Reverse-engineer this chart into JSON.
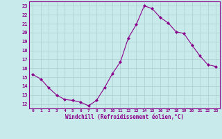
{
  "x": [
    0,
    1,
    2,
    3,
    4,
    5,
    6,
    7,
    8,
    9,
    10,
    11,
    12,
    13,
    14,
    15,
    16,
    17,
    18,
    19,
    20,
    21,
    22,
    23
  ],
  "y": [
    15.3,
    14.8,
    13.8,
    13.0,
    12.5,
    12.4,
    12.2,
    11.8,
    12.4,
    13.8,
    15.4,
    16.7,
    19.4,
    20.9,
    23.0,
    22.7,
    21.7,
    21.1,
    20.1,
    19.9,
    18.6,
    17.4,
    16.4,
    16.2
  ],
  "line_color": "#8B008B",
  "marker": "D",
  "marker_size": 2.0,
  "bg_color": "#c8eaea",
  "grid_color": "#aad0d0",
  "xlabel": "Windchill (Refroidissement éolien,°C)",
  "xlabel_color": "#8B008B",
  "tick_color": "#8B008B",
  "ylim": [
    11.5,
    23.5
  ],
  "xlim": [
    -0.5,
    23.5
  ],
  "yticks": [
    12,
    13,
    14,
    15,
    16,
    17,
    18,
    19,
    20,
    21,
    22,
    23
  ],
  "xticks": [
    0,
    1,
    2,
    3,
    4,
    5,
    6,
    7,
    8,
    9,
    10,
    11,
    12,
    13,
    14,
    15,
    16,
    17,
    18,
    19,
    20,
    21,
    22,
    23
  ]
}
